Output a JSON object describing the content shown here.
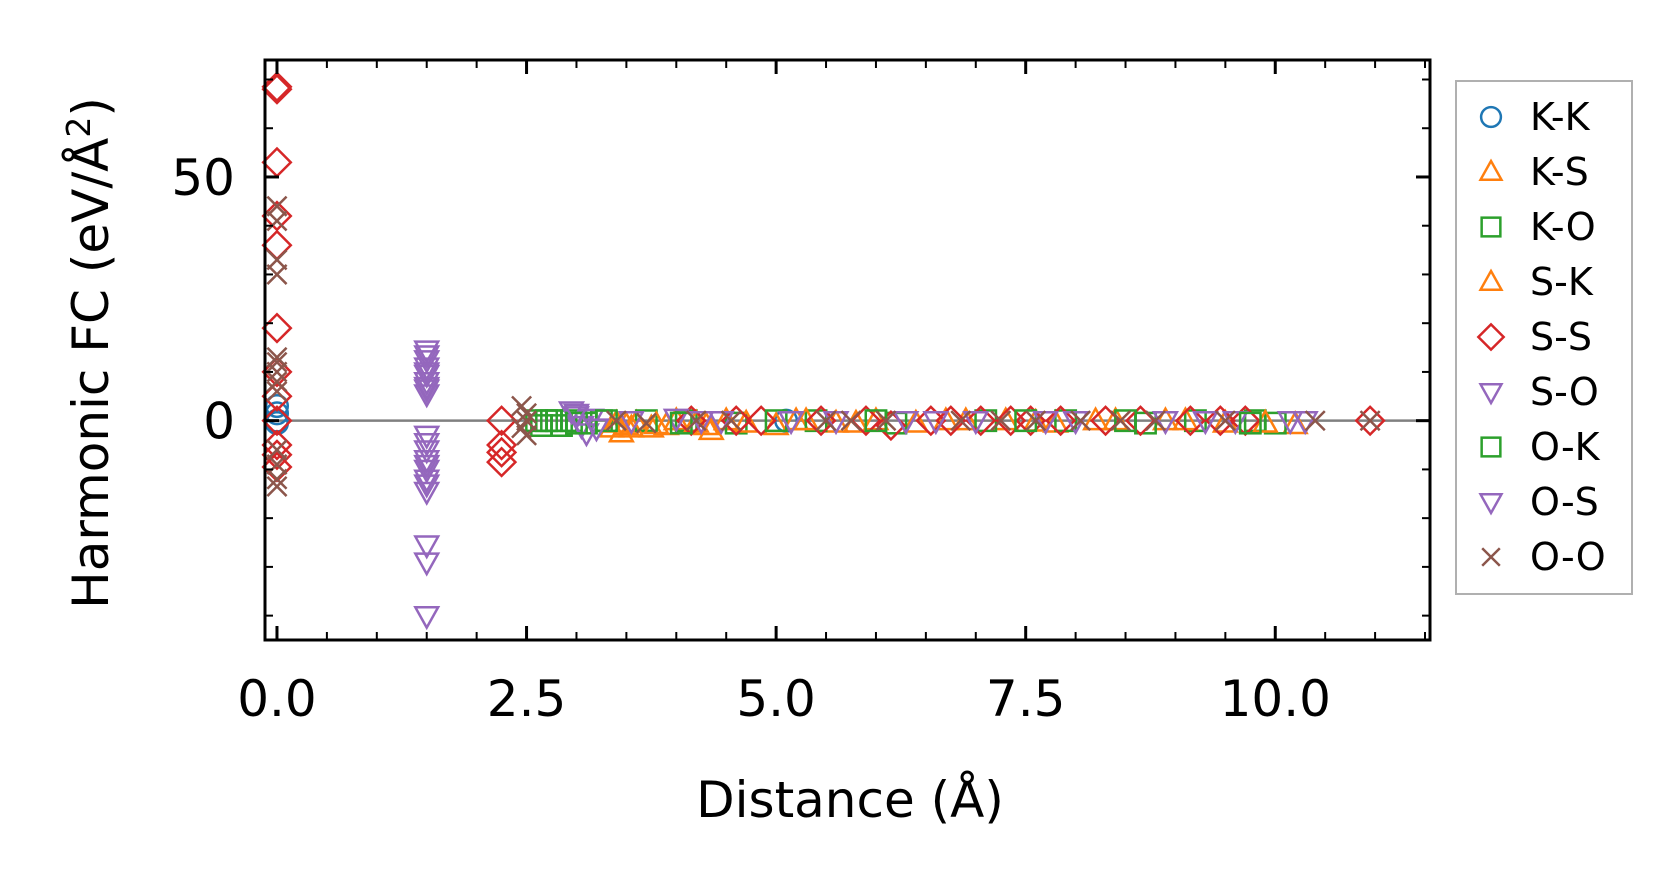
{
  "chart_data": {
    "type": "scatter",
    "title": "",
    "xlabel": "Distance (Å)",
    "ylabel_main": "Harmonic FC (eV/Å",
    "ylabel_sup": "2",
    "ylabel_close": ")",
    "xlim": [
      -0.12,
      11.55
    ],
    "ylim": [
      -45,
      74
    ],
    "x_ticks": [
      0.0,
      2.5,
      5.0,
      7.5,
      10.0
    ],
    "x_tick_labels": [
      "0.0",
      "2.5",
      "5.0",
      "7.5",
      "10.0"
    ],
    "y_ticks": [
      0,
      50
    ],
    "y_tick_labels": [
      "0",
      "50"
    ],
    "zero_line": true,
    "grid": false,
    "legend_position": "outside-right",
    "series": [
      {
        "name": "K-K",
        "marker": "circle",
        "color": "#1f77b4",
        "points": [
          [
            0.0,
            3.0
          ],
          [
            0.0,
            1.5
          ],
          [
            0.0,
            0.0
          ],
          [
            0.0,
            -0.5
          ],
          [
            5.1,
            0.0
          ]
        ]
      },
      {
        "name": "K-S",
        "marker": "triangle-up",
        "color": "#ff7f0e",
        "points": [
          [
            3.35,
            -1.5
          ],
          [
            3.45,
            -2.5
          ],
          [
            3.5,
            -1.0
          ],
          [
            3.6,
            -0.5
          ],
          [
            3.75,
            -1.5
          ],
          [
            3.9,
            -1.0
          ],
          [
            4.0,
            0.0
          ],
          [
            4.3,
            -1.0
          ],
          [
            4.35,
            -2.0
          ],
          [
            4.5,
            0.0
          ],
          [
            5.0,
            -1.0
          ],
          [
            5.2,
            0.0
          ],
          [
            5.6,
            -0.5
          ],
          [
            6.0,
            0.0
          ],
          [
            6.4,
            -0.5
          ],
          [
            6.9,
            0.0
          ],
          [
            7.3,
            0.0
          ],
          [
            7.8,
            -0.5
          ],
          [
            8.4,
            0.0
          ],
          [
            8.9,
            0.0
          ],
          [
            9.5,
            -0.5
          ],
          [
            10.2,
            -0.8
          ]
        ]
      },
      {
        "name": "K-O",
        "marker": "square",
        "color": "#2ca02c",
        "points": [
          [
            2.6,
            0.0
          ],
          [
            2.65,
            -1.0
          ],
          [
            2.7,
            0.0
          ],
          [
            2.8,
            0.0
          ],
          [
            2.85,
            -1.0
          ],
          [
            2.95,
            0.0
          ],
          [
            3.1,
            -0.5
          ],
          [
            3.25,
            0.0
          ],
          [
            3.7,
            0.0
          ],
          [
            4.1,
            0.0
          ],
          [
            4.6,
            -0.5
          ],
          [
            5.4,
            0.0
          ],
          [
            6.2,
            -0.5
          ],
          [
            7.1,
            0.0
          ],
          [
            7.9,
            0.0
          ],
          [
            8.7,
            -0.5
          ],
          [
            9.2,
            0.0
          ],
          [
            9.8,
            0.0
          ],
          [
            10.0,
            -0.5
          ]
        ]
      },
      {
        "name": "S-K",
        "marker": "triangle-up",
        "color": "#ff7f0e",
        "points": [
          [
            3.4,
            -0.5
          ],
          [
            3.55,
            -1.5
          ],
          [
            3.8,
            -0.8
          ],
          [
            4.2,
            -0.5
          ],
          [
            4.7,
            -0.5
          ],
          [
            5.3,
            0.0
          ],
          [
            5.8,
            -0.5
          ],
          [
            6.7,
            0.0
          ],
          [
            7.6,
            -0.3
          ],
          [
            8.2,
            0.0
          ],
          [
            9.1,
            0.0
          ],
          [
            9.9,
            -0.5
          ]
        ]
      },
      {
        "name": "S-S",
        "marker": "diamond",
        "color": "#d62728",
        "points": [
          [
            0.0,
            68.0
          ],
          [
            0.0,
            68.5
          ],
          [
            0.0,
            53.0
          ],
          [
            0.0,
            42.0
          ],
          [
            0.0,
            36.0
          ],
          [
            0.0,
            19.0
          ],
          [
            0.0,
            10.0
          ],
          [
            0.0,
            5.0
          ],
          [
            0.0,
            0.0
          ],
          [
            0.0,
            -5.0
          ],
          [
            0.0,
            -7.0
          ],
          [
            0.0,
            -9.5
          ],
          [
            2.25,
            0.0
          ],
          [
            2.25,
            -5.0
          ],
          [
            2.25,
            -6.5
          ],
          [
            2.25,
            -8.5
          ],
          [
            4.15,
            0.0
          ],
          [
            4.6,
            0.0
          ],
          [
            4.85,
            0.0
          ],
          [
            5.45,
            0.0
          ],
          [
            5.9,
            0.0
          ],
          [
            6.15,
            -1.0
          ],
          [
            6.55,
            0.0
          ],
          [
            6.75,
            0.0
          ],
          [
            7.05,
            0.0
          ],
          [
            7.35,
            0.0
          ],
          [
            7.55,
            0.0
          ],
          [
            7.85,
            0.0
          ],
          [
            8.3,
            0.0
          ],
          [
            8.65,
            0.0
          ],
          [
            9.15,
            0.0
          ],
          [
            9.45,
            0.0
          ],
          [
            9.7,
            0.0
          ],
          [
            10.95,
            0.0
          ]
        ]
      },
      {
        "name": "S-O",
        "marker": "triangle-down",
        "color": "#9467bd",
        "points": [
          [
            1.5,
            14.5
          ],
          [
            1.5,
            12.5
          ],
          [
            1.5,
            11.0
          ],
          [
            1.5,
            9.5
          ],
          [
            1.5,
            8.0
          ],
          [
            1.5,
            7.0
          ],
          [
            1.5,
            5.5
          ],
          [
            1.5,
            -3.0
          ],
          [
            1.5,
            -6.0
          ],
          [
            1.5,
            -8.0
          ],
          [
            1.5,
            -10.0
          ],
          [
            1.5,
            -12.0
          ],
          [
            1.5,
            -14.5
          ],
          [
            1.5,
            -25.5
          ],
          [
            1.5,
            -29.0
          ],
          [
            1.5,
            -40.0
          ],
          [
            2.95,
            2.0
          ],
          [
            3.0,
            1.0
          ],
          [
            3.05,
            -1.0
          ],
          [
            3.1,
            -2.5
          ],
          [
            3.15,
            0.5
          ],
          [
            3.55,
            0.0
          ],
          [
            4.0,
            0.5
          ],
          [
            4.45,
            0.0
          ],
          [
            5.6,
            0.0
          ],
          [
            6.3,
            0.0
          ],
          [
            7.0,
            0.0
          ],
          [
            8.0,
            0.0
          ],
          [
            8.9,
            0.0
          ],
          [
            9.6,
            0.0
          ],
          [
            10.3,
            0.0
          ]
        ]
      },
      {
        "name": "O-K",
        "marker": "square",
        "color": "#2ca02c",
        "points": [
          [
            2.75,
            0.0
          ],
          [
            3.0,
            -0.5
          ],
          [
            3.3,
            0.0
          ],
          [
            4.05,
            -0.5
          ],
          [
            5.0,
            0.0
          ],
          [
            6.0,
            0.0
          ],
          [
            7.5,
            0.0
          ],
          [
            8.5,
            0.0
          ],
          [
            9.75,
            -0.5
          ]
        ]
      },
      {
        "name": "O-S",
        "marker": "triangle-down",
        "color": "#9467bd",
        "points": [
          [
            1.5,
            13.5
          ],
          [
            1.5,
            10.0
          ],
          [
            1.5,
            6.5
          ],
          [
            1.5,
            -4.5
          ],
          [
            1.5,
            -9.0
          ],
          [
            1.5,
            -13.0
          ],
          [
            3.0,
            1.5
          ],
          [
            3.2,
            -1.5
          ],
          [
            4.25,
            0.0
          ],
          [
            5.15,
            0.0
          ],
          [
            6.6,
            0.0
          ],
          [
            7.7,
            0.0
          ],
          [
            9.3,
            0.0
          ],
          [
            10.15,
            0.0
          ]
        ]
      },
      {
        "name": "O-O",
        "marker": "x",
        "color": "#8c564b",
        "points": [
          [
            0.0,
            44.0
          ],
          [
            0.0,
            41.0
          ],
          [
            0.0,
            33.0
          ],
          [
            0.0,
            30.0
          ],
          [
            0.0,
            13.0
          ],
          [
            0.0,
            12.0
          ],
          [
            0.0,
            10.0
          ],
          [
            0.0,
            8.0
          ],
          [
            0.0,
            6.0
          ],
          [
            0.0,
            -6.0
          ],
          [
            0.0,
            -9.0
          ],
          [
            0.0,
            -12.0
          ],
          [
            0.0,
            -13.5
          ],
          [
            2.45,
            3.0
          ],
          [
            2.5,
            1.5
          ],
          [
            2.5,
            0.0
          ],
          [
            2.45,
            -1.5
          ],
          [
            2.5,
            -3.0
          ],
          [
            3.4,
            0.0
          ],
          [
            3.7,
            -0.5
          ],
          [
            4.2,
            0.0
          ],
          [
            4.55,
            0.0
          ],
          [
            5.5,
            0.0
          ],
          [
            5.75,
            0.0
          ],
          [
            6.1,
            0.0
          ],
          [
            6.85,
            0.0
          ],
          [
            7.25,
            0.0
          ],
          [
            7.6,
            0.0
          ],
          [
            8.05,
            0.0
          ],
          [
            8.45,
            0.0
          ],
          [
            8.8,
            0.0
          ],
          [
            9.5,
            0.0
          ],
          [
            10.4,
            0.0
          ],
          [
            10.95,
            0.0
          ]
        ]
      }
    ]
  }
}
